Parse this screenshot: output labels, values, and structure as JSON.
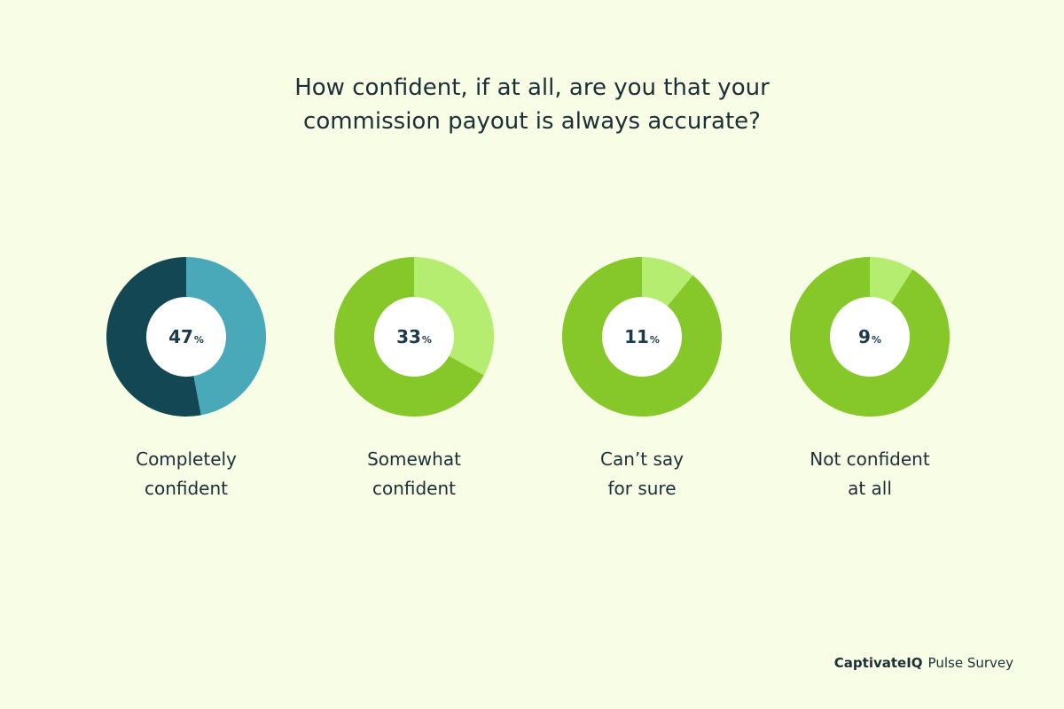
{
  "chart_data": {
    "type": "pie",
    "title_lines": [
      "How confident, if at all, are you that your",
      "commission payout is always accurate?"
    ],
    "unit": "%",
    "slices": [
      {
        "label_lines": [
          "Completely",
          "confident"
        ],
        "value": 47,
        "value_text": "47",
        "highlight_color": "#4aa9b8",
        "rest_color": "#134753"
      },
      {
        "label_lines": [
          "Somewhat",
          "confident"
        ],
        "value": 33,
        "value_text": "33",
        "highlight_color": "#b5ed70",
        "rest_color": "#86c72a"
      },
      {
        "label_lines": [
          "Can’t say",
          "for sure"
        ],
        "value": 11,
        "value_text": "11",
        "highlight_color": "#b5ed70",
        "rest_color": "#86c72a"
      },
      {
        "label_lines": [
          "Not confident",
          "at all"
        ],
        "value": 9,
        "value_text": "9",
        "highlight_color": "#b5ed70",
        "rest_color": "#86c72a"
      }
    ]
  },
  "footer": {
    "brand": "CaptivateIQ",
    "suffix": "Pulse Survey"
  },
  "colors": {
    "background": "#f8fde6",
    "text": "#1c2e36",
    "hole": "#ffffff"
  }
}
